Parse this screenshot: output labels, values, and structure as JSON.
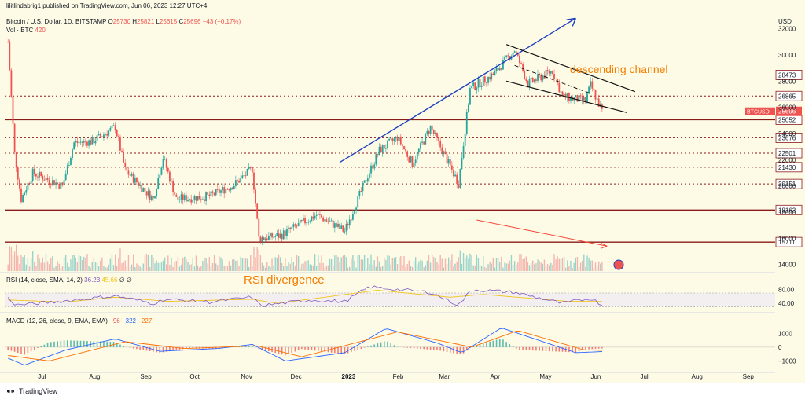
{
  "header": {
    "publisher_line": "lilitlindabrig1 published on TradingView.com, Jun 06, 2023 12:27 UTC+4",
    "symbol_prefix": "Bitcoin / U.S. Dollar, 1D, BITSTAMP",
    "ohlc": {
      "o_label": "O",
      "o_value": "25730",
      "h_label": "H",
      "h_value": "25821",
      "l_label": "L",
      "l_value": "25615",
      "c_label": "C",
      "c_value": "25696",
      "change": "−43 (−0.17%)"
    },
    "volume_label": "Vol · BTC",
    "volume_value": "420"
  },
  "price_axis": {
    "currency": "USD",
    "ticks": [
      "32000",
      "30000",
      "28000",
      "26000",
      "24000",
      "22000",
      "20000",
      "18000",
      "16000",
      "14000"
    ]
  },
  "levels": [
    {
      "label": "28473",
      "value": 28473
    },
    {
      "label": "26865",
      "value": 26865
    },
    {
      "label": "25052",
      "value": 25052
    },
    {
      "label": "23676",
      "value": 23676
    },
    {
      "label": "22501",
      "value": 22501
    },
    {
      "label": "21430",
      "value": 21430
    },
    {
      "label": "20151",
      "value": 20151
    },
    {
      "label": "18163",
      "value": 18163
    },
    {
      "label": "15711",
      "value": 15711
    }
  ],
  "current_price": {
    "symbol": "BTCUSD",
    "label": "25696",
    "value": 25696
  },
  "annotations": {
    "channel": "descending channel",
    "rsi_div": "RSI divergence"
  },
  "rsi": {
    "header_prefix": "RSI (14, close, SMA, 14, 2)",
    "value": "36.23",
    "sma": "45.66",
    "extra": "∅ ∅",
    "ticks": [
      "80.00",
      "40.00"
    ]
  },
  "macd": {
    "header_prefix": "MACD (12, 26, close, 9, EMA, EMA)",
    "hist": "−96",
    "macd": "−322",
    "signal": "−227",
    "ticks": [
      "1000",
      "0",
      "−1000"
    ]
  },
  "time_axis": [
    "Jul",
    "Aug",
    "Sep",
    "Oct",
    "Nov",
    "Dec",
    "2023",
    "Feb",
    "Mar",
    "Apr",
    "May",
    "Jun",
    "Jul",
    "Aug",
    "Sep"
  ],
  "brand": "TradingView",
  "colors": {
    "up": "#26a69a",
    "down": "#ef5350",
    "level": "#8b1a1a",
    "trend": "#1e3fbf",
    "annotation": "#f57c00",
    "rsi": "#7e57c2",
    "macd": "#2962ff",
    "signal": "#ff6d00"
  },
  "chart_data": {
    "type": "candlestick",
    "price_ylim": [
      13500,
      33000
    ],
    "months": [
      "Jul",
      "Aug",
      "Sep",
      "Oct",
      "Nov",
      "Dec",
      "2023",
      "Feb",
      "Mar",
      "Apr",
      "May",
      "Jun"
    ],
    "close_series": [
      {
        "date": "2022-06-10",
        "value": 31000
      },
      {
        "date": "2022-06-14",
        "value": 22500
      },
      {
        "date": "2022-06-18",
        "value": 19000
      },
      {
        "date": "2022-06-25",
        "value": 21000
      },
      {
        "date": "2022-07-13",
        "value": 20000
      },
      {
        "date": "2022-07-20",
        "value": 23300
      },
      {
        "date": "2022-07-31",
        "value": 23400
      },
      {
        "date": "2022-08-14",
        "value": 24500
      },
      {
        "date": "2022-08-20",
        "value": 21200
      },
      {
        "date": "2022-09-06",
        "value": 19000
      },
      {
        "date": "2022-09-12",
        "value": 22200
      },
      {
        "date": "2022-09-20",
        "value": 19000
      },
      {
        "date": "2022-10-10",
        "value": 19200
      },
      {
        "date": "2022-10-25",
        "value": 20100
      },
      {
        "date": "2022-11-05",
        "value": 21300
      },
      {
        "date": "2022-11-09",
        "value": 16000
      },
      {
        "date": "2022-11-22",
        "value": 16200
      },
      {
        "date": "2022-12-14",
        "value": 17800
      },
      {
        "date": "2022-12-31",
        "value": 16550
      },
      {
        "date": "2023-01-14",
        "value": 20800
      },
      {
        "date": "2023-01-21",
        "value": 22700
      },
      {
        "date": "2023-02-01",
        "value": 23700
      },
      {
        "date": "2023-02-10",
        "value": 21700
      },
      {
        "date": "2023-02-21",
        "value": 24500
      },
      {
        "date": "2023-03-10",
        "value": 20200
      },
      {
        "date": "2023-03-17",
        "value": 27400
      },
      {
        "date": "2023-03-31",
        "value": 28500
      },
      {
        "date": "2023-04-13",
        "value": 30400
      },
      {
        "date": "2023-04-21",
        "value": 27800
      },
      {
        "date": "2023-05-06",
        "value": 28800
      },
      {
        "date": "2023-05-12",
        "value": 26800
      },
      {
        "date": "2023-05-26",
        "value": 26500
      },
      {
        "date": "2023-05-29",
        "value": 27700
      },
      {
        "date": "2023-06-05",
        "value": 25696
      }
    ],
    "trend_line": [
      {
        "date": "2022-12-28",
        "value": 21800
      },
      {
        "date": "2023-05-20",
        "value": 32800
      }
    ],
    "channel_upper": [
      {
        "date": "2023-04-08",
        "value": 30800
      },
      {
        "date": "2023-06-25",
        "value": 27200
      }
    ],
    "channel_lower": [
      {
        "date": "2023-04-08",
        "value": 28000
      },
      {
        "date": "2023-06-20",
        "value": 25600
      }
    ],
    "volume_divergence_arrow": [
      {
        "date": "2023-03-21",
        "value": 17400
      },
      {
        "date": "2023-06-08",
        "value": 15400
      }
    ],
    "rsi_ylim": [
      20,
      95
    ],
    "rsi_series": [
      {
        "date": "2022-06-10",
        "value": 55
      },
      {
        "date": "2022-06-15",
        "value": 35
      },
      {
        "date": "2022-07-10",
        "value": 45
      },
      {
        "date": "2022-08-14",
        "value": 62
      },
      {
        "date": "2022-09-06",
        "value": 40
      },
      {
        "date": "2022-09-13",
        "value": 52
      },
      {
        "date": "2022-10-10",
        "value": 44
      },
      {
        "date": "2022-11-05",
        "value": 58
      },
      {
        "date": "2022-11-10",
        "value": 33
      },
      {
        "date": "2022-12-10",
        "value": 50
      },
      {
        "date": "2022-12-31",
        "value": 45
      },
      {
        "date": "2023-01-15",
        "value": 88
      },
      {
        "date": "2023-02-01",
        "value": 80
      },
      {
        "date": "2023-02-21",
        "value": 72
      },
      {
        "date": "2023-03-10",
        "value": 35
      },
      {
        "date": "2023-03-18",
        "value": 80
      },
      {
        "date": "2023-04-13",
        "value": 72
      },
      {
        "date": "2023-05-12",
        "value": 40
      },
      {
        "date": "2023-05-29",
        "value": 55
      },
      {
        "date": "2023-06-05",
        "value": 36.23
      }
    ],
    "rsi_sma_series": [
      {
        "date": "2022-06-10",
        "value": 50
      },
      {
        "date": "2022-07-15",
        "value": 44
      },
      {
        "date": "2022-08-14",
        "value": 58
      },
      {
        "date": "2022-09-15",
        "value": 46
      },
      {
        "date": "2022-11-05",
        "value": 52
      },
      {
        "date": "2022-11-20",
        "value": 40
      },
      {
        "date": "2023-01-20",
        "value": 78
      },
      {
        "date": "2023-03-05",
        "value": 58
      },
      {
        "date": "2023-03-25",
        "value": 66
      },
      {
        "date": "2023-05-15",
        "value": 46
      },
      {
        "date": "2023-06-05",
        "value": 45.66
      }
    ],
    "macd_ylim": [
      -1600,
      1700
    ],
    "macd_series": [
      {
        "date": "2022-06-10",
        "value": -800
      },
      {
        "date": "2022-06-20",
        "value": -1300
      },
      {
        "date": "2022-07-15",
        "value": -200
      },
      {
        "date": "2022-08-14",
        "value": 600
      },
      {
        "date": "2022-09-10",
        "value": -300
      },
      {
        "date": "2022-10-15",
        "value": -100
      },
      {
        "date": "2022-11-05",
        "value": 200
      },
      {
        "date": "2022-11-25",
        "value": -1000
      },
      {
        "date": "2022-12-31",
        "value": -400
      },
      {
        "date": "2023-01-25",
        "value": 1350
      },
      {
        "date": "2023-02-25",
        "value": 300
      },
      {
        "date": "2023-03-12",
        "value": -400
      },
      {
        "date": "2023-04-05",
        "value": 1400
      },
      {
        "date": "2023-04-25",
        "value": 600
      },
      {
        "date": "2023-05-20",
        "value": -400
      },
      {
        "date": "2023-06-05",
        "value": -322
      }
    ],
    "macd_signal_series": [
      {
        "date": "2022-06-10",
        "value": -600
      },
      {
        "date": "2022-07-05",
        "value": -1000
      },
      {
        "date": "2022-08-20",
        "value": 400
      },
      {
        "date": "2022-09-25",
        "value": -100
      },
      {
        "date": "2022-11-08",
        "value": 100
      },
      {
        "date": "2022-12-05",
        "value": -700
      },
      {
        "date": "2023-02-01",
        "value": 1100
      },
      {
        "date": "2023-03-18",
        "value": 0
      },
      {
        "date": "2023-04-15",
        "value": 1200
      },
      {
        "date": "2023-05-25",
        "value": -200
      },
      {
        "date": "2023-06-05",
        "value": -227
      }
    ]
  }
}
